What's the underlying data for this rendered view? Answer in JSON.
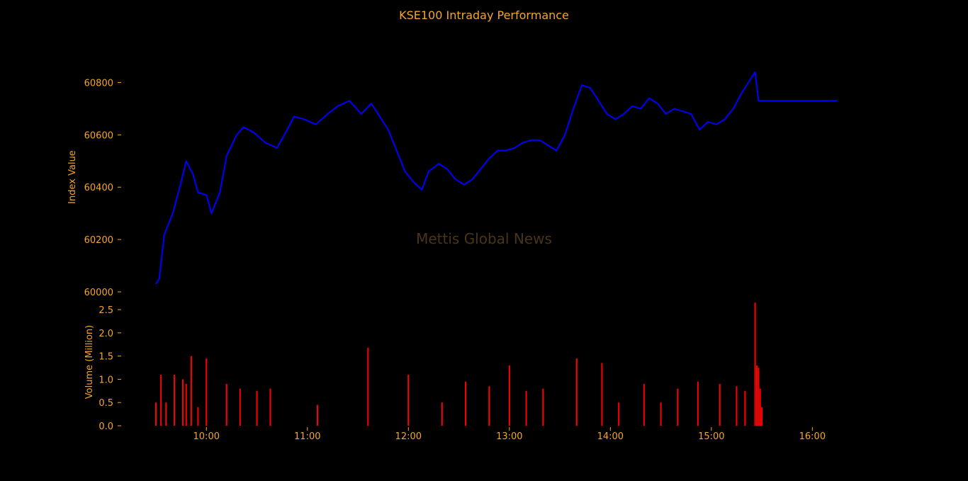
{
  "title": "KSE100 Intraday Performance",
  "watermark": "Mettis Global News",
  "colors": {
    "background": "#000000",
    "text": "#f5a52a",
    "index_line": "#0000ff",
    "volume_bars": "#ff0000",
    "watermark": "#4a3418"
  },
  "chart_data": [
    {
      "type": "line",
      "ylabel": "Index Value",
      "ylim": [
        60000,
        60850
      ],
      "yticks": [
        60000,
        60200,
        60400,
        60600,
        60800
      ],
      "grid": false,
      "series": [
        {
          "x": [
            "09:30",
            "09:32",
            "09:35",
            "09:40",
            "09:45",
            "09:48",
            "09:52",
            "09:55",
            "10:00",
            "10:03",
            "10:08",
            "10:12",
            "10:18",
            "10:22",
            "10:28",
            "10:35",
            "10:42",
            "10:48",
            "10:52",
            "10:58",
            "11:05",
            "11:12",
            "11:18",
            "11:25",
            "11:32",
            "11:38",
            "11:42",
            "11:48",
            "11:53",
            "11:58",
            "12:03",
            "12:08",
            "12:12",
            "12:18",
            "12:23",
            "12:28",
            "12:33",
            "12:38",
            "12:43",
            "12:48",
            "12:53",
            "12:58",
            "13:03",
            "13:08",
            "13:13",
            "13:18",
            "13:23",
            "13:28",
            "13:33",
            "13:38",
            "13:43",
            "13:48",
            "13:53",
            "13:58",
            "14:03",
            "14:08",
            "14:13",
            "14:18",
            "14:23",
            "14:28",
            "14:33",
            "14:38",
            "14:43",
            "14:48",
            "14:53",
            "14:58",
            "15:03",
            "15:08",
            "15:13",
            "15:18",
            "15:22",
            "15:26",
            "15:28",
            "15:30",
            "16:15"
          ],
          "values": [
            60030,
            60050,
            60220,
            60300,
            60420,
            60500,
            60450,
            60380,
            60370,
            60300,
            60380,
            60520,
            60600,
            60630,
            60610,
            60570,
            60550,
            60620,
            60670,
            60660,
            60640,
            60680,
            60710,
            60730,
            60680,
            60720,
            60680,
            60620,
            60540,
            60460,
            60420,
            60390,
            60460,
            60490,
            60470,
            60430,
            60410,
            60430,
            60470,
            60510,
            60540,
            60540,
            60550,
            60570,
            60580,
            60580,
            60560,
            60540,
            60600,
            60700,
            60790,
            60780,
            60730,
            60680,
            60660,
            60680,
            60710,
            60700,
            60740,
            60720,
            60680,
            60700,
            60690,
            60680,
            60620,
            60650,
            60640,
            60660,
            60700,
            60760,
            60800,
            60840,
            60730,
            60730,
            60730
          ]
        }
      ]
    },
    {
      "type": "bar",
      "ylabel": "Volume (Million)",
      "ylim": [
        0,
        2.7
      ],
      "yticks": [
        0.0,
        0.5,
        1.0,
        1.5,
        2.0,
        2.5
      ],
      "xticks": [
        "10:00",
        "11:00",
        "12:00",
        "13:00",
        "14:00",
        "15:00",
        "16:00"
      ],
      "grid": false,
      "series": [
        {
          "x": [
            "09:30",
            "09:33",
            "09:36",
            "09:41",
            "09:46",
            "09:48",
            "09:51",
            "09:55",
            "10:00",
            "10:12",
            "10:20",
            "10:30",
            "10:38",
            "11:06",
            "11:36",
            "12:00",
            "12:20",
            "12:34",
            "12:48",
            "13:00",
            "13:10",
            "13:20",
            "13:40",
            "13:55",
            "14:05",
            "14:20",
            "14:30",
            "14:40",
            "14:52",
            "15:05",
            "15:15",
            "15:20",
            "15:26",
            "15:27",
            "15:28",
            "15:29",
            "15:30"
          ],
          "values": [
            0.5,
            1.1,
            0.5,
            1.1,
            1.0,
            0.9,
            1.5,
            0.4,
            1.45,
            0.9,
            0.8,
            0.75,
            0.8,
            0.45,
            1.68,
            1.1,
            0.5,
            0.95,
            0.85,
            1.3,
            0.75,
            0.8,
            1.45,
            1.35,
            0.5,
            0.9,
            0.5,
            0.8,
            0.95,
            0.9,
            0.85,
            0.75,
            2.65,
            1.3,
            1.25,
            0.8,
            0.4
          ]
        }
      ]
    }
  ]
}
